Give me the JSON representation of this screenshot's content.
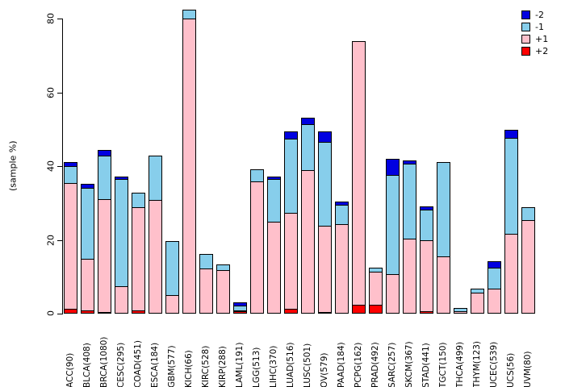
{
  "ylabel": "(sample %)",
  "legend": {
    "position": "top-right",
    "entries": [
      {
        "label": "-2",
        "color": "#0000E0"
      },
      {
        "label": "-1",
        "color": "#87CEEB"
      },
      {
        "label": "+1",
        "color": "#FFC0CB"
      },
      {
        "label": "+2",
        "color": "#FF0000"
      }
    ]
  },
  "chart_data": {
    "type": "bar",
    "stacked": true,
    "title": "",
    "xlabel": "",
    "ylabel": "(sample %)",
    "ylim": [
      0,
      80
    ],
    "yticks": [
      0,
      20,
      40,
      60,
      80
    ],
    "grid": false,
    "bar_border_color": "#000000",
    "categories": [
      "ACC(90)",
      "BLCA(408)",
      "BRCA(1080)",
      "CESC(295)",
      "COAD(451)",
      "ESCA(184)",
      "GBM(577)",
      "KICH(66)",
      "KIRC(528)",
      "KIRP(288)",
      "LAML(191)",
      "LGG(513)",
      "LIHC(370)",
      "LUAD(516)",
      "LUSC(501)",
      "OV(579)",
      "PAAD(184)",
      "PCPG(162)",
      "PRAD(492)",
      "SARC(257)",
      "SKCM(367)",
      "STAD(441)",
      "TGCT(150)",
      "THCA(499)",
      "THYM(123)",
      "UCEC(539)",
      "UCS(56)",
      "UVM(80)"
    ],
    "series": [
      {
        "name": "+2",
        "color": "#FF0000",
        "values": [
          1.4,
          0.8,
          0.3,
          0,
          0.8,
          0,
          0,
          0,
          0,
          0,
          0.6,
          0,
          0,
          1.4,
          0,
          0.5,
          0,
          2.3,
          2.3,
          0,
          0,
          0.6,
          0,
          0,
          0,
          0,
          0,
          0
        ]
      },
      {
        "name": "+1",
        "color": "#FFC0CB",
        "values": [
          34.1,
          14.1,
          30.6,
          7.4,
          28.1,
          30.9,
          5.0,
          79.9,
          12.3,
          11.7,
          0.3,
          35.8,
          24.9,
          25.9,
          38.8,
          23.3,
          24.2,
          71.6,
          9.1,
          10.6,
          20.3,
          19.3,
          15.5,
          0.7,
          5.6,
          6.7,
          21.6,
          25.3
        ]
      },
      {
        "name": "-1",
        "color": "#87CEEB",
        "values": [
          4.4,
          19.1,
          11.9,
          29.0,
          3.9,
          12.0,
          14.7,
          2.4,
          3.9,
          1.7,
          1.2,
          3.3,
          11.5,
          20.2,
          12.6,
          22.8,
          5.3,
          0,
          1.1,
          26.9,
          20.3,
          8.4,
          25.7,
          0.9,
          1.1,
          5.8,
          26.1,
          3.5
        ]
      },
      {
        "name": "-2",
        "color": "#0000E0",
        "values": [
          1.2,
          1.3,
          1.6,
          0.7,
          0,
          0,
          0,
          0,
          0,
          0,
          0.9,
          0,
          0.8,
          1.8,
          1.8,
          2.9,
          0.9,
          0,
          0,
          4.4,
          0.9,
          0.8,
          0,
          0,
          0,
          1.8,
          2.2,
          0
        ]
      }
    ],
    "totals_note": "stack order bottom to top: +2, +1, -1, -2"
  }
}
